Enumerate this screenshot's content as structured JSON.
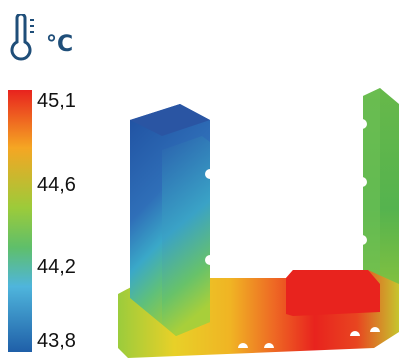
{
  "header": {
    "icon": "thermometer-icon",
    "unit": "°C"
  },
  "legend": {
    "ticks": [
      "45,1",
      "44,6",
      "44,2",
      "43,8"
    ],
    "colors": {
      "max": "#e8231e",
      "upper": "#f5a623",
      "mid": "#7cc242",
      "lower": "#4fb5dc",
      "min": "#1f5fa8"
    }
  },
  "model": {
    "subject": "U-shaped profile thermal simulation"
  }
}
